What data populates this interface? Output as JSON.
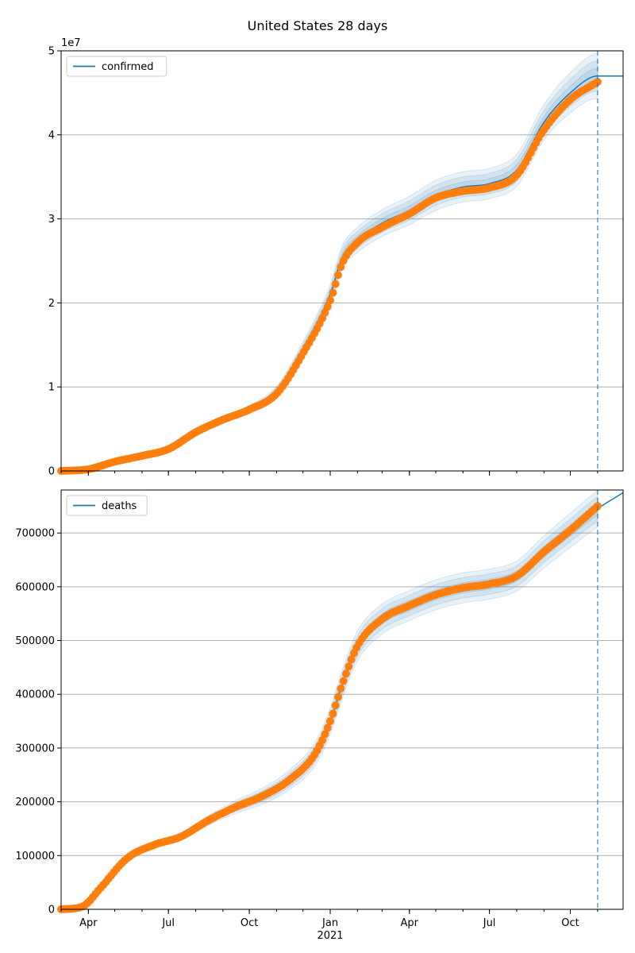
{
  "title": "United States 28 days",
  "chart_data": [
    {
      "type": "line",
      "panel": "top",
      "legend": [
        "confirmed"
      ],
      "legend_position": "upper left",
      "grid": "horizontal",
      "x_range": [
        "2020-03-01",
        "2021-11-30"
      ],
      "xtick_labels": [
        "Apr",
        "Jul",
        "Oct",
        "Jan",
        "Apr",
        "Jul",
        "Oct"
      ],
      "xtick_dates": [
        "2020-04-01",
        "2020-07-01",
        "2020-10-01",
        "2021-01-01",
        "2021-04-01",
        "2021-07-01",
        "2021-10-01"
      ],
      "year_label": "2021",
      "ylim": [
        0,
        50000000
      ],
      "yticks": [
        0,
        10000000,
        20000000,
        30000000,
        40000000,
        50000000
      ],
      "ytick_labels": [
        "0",
        "1",
        "2",
        "3",
        "4",
        "5"
      ],
      "y_offset_label": "1e7",
      "forecast_start": "2021-11-01",
      "series": [
        {
          "name": "confirmed",
          "role": "model",
          "color": "#1f77b4",
          "x": [
            "2020-03-01",
            "2020-04-01",
            "2020-05-01",
            "2020-06-01",
            "2020-07-01",
            "2020-08-01",
            "2020-09-01",
            "2020-10-01",
            "2020-11-01",
            "2020-12-01",
            "2021-01-01",
            "2021-01-15",
            "2021-02-01",
            "2021-03-01",
            "2021-04-01",
            "2021-05-01",
            "2021-06-01",
            "2021-07-01",
            "2021-08-01",
            "2021-09-01",
            "2021-10-01",
            "2021-11-01",
            "2021-12-01"
          ],
          "y": [
            0,
            200000,
            1150000,
            1800000,
            2700000,
            4700000,
            6200000,
            7400000,
            9500000,
            14500000,
            21000000,
            25500000,
            27500000,
            29500000,
            31000000,
            32800000,
            33800000,
            34200000,
            35800000,
            41500000,
            45000000,
            47000000,
            47000000
          ]
        },
        {
          "name": "observed",
          "role": "observed",
          "color": "#ff7f0e",
          "x": [
            "2020-03-01",
            "2020-04-01",
            "2020-05-01",
            "2020-06-01",
            "2020-07-01",
            "2020-08-01",
            "2020-09-01",
            "2020-10-01",
            "2020-11-01",
            "2020-12-01",
            "2021-01-01",
            "2021-01-15",
            "2021-02-01",
            "2021-03-01",
            "2021-04-01",
            "2021-05-01",
            "2021-06-01",
            "2021-07-01",
            "2021-08-01",
            "2021-09-01",
            "2021-10-01",
            "2021-11-01"
          ],
          "y": [
            0,
            200000,
            1100000,
            1800000,
            2600000,
            4600000,
            6100000,
            7300000,
            9200000,
            14000000,
            20300000,
            24800000,
            27200000,
            29000000,
            30600000,
            32500000,
            33300000,
            33700000,
            35200000,
            40600000,
            44200000,
            46300000
          ]
        }
      ],
      "bands": {
        "x": [
          "2020-09-01",
          "2020-10-01",
          "2020-11-01",
          "2020-12-01",
          "2021-01-01",
          "2021-01-15",
          "2021-02-01",
          "2021-03-01",
          "2021-04-01",
          "2021-05-01",
          "2021-06-01",
          "2021-07-01",
          "2021-08-01",
          "2021-09-01",
          "2021-10-01",
          "2021-11-01"
        ],
        "half_widths": [
          [
            300000,
            400000,
            600000,
            900000,
            1200000,
            1400000,
            1500000,
            1600000,
            1700000,
            1800000,
            1800000,
            1800000,
            1900000,
            2100000,
            2400000,
            2700000
          ],
          [
            200000,
            270000,
            400000,
            600000,
            800000,
            950000,
            1000000,
            1100000,
            1150000,
            1200000,
            1200000,
            1200000,
            1300000,
            1400000,
            1600000,
            1800000
          ],
          [
            100000,
            130000,
            200000,
            300000,
            400000,
            450000,
            500000,
            550000,
            570000,
            600000,
            600000,
            600000,
            650000,
            700000,
            800000,
            900000
          ]
        ]
      }
    },
    {
      "type": "line",
      "panel": "bottom",
      "legend": [
        "deaths"
      ],
      "legend_position": "upper left",
      "grid": "horizontal",
      "x_range": [
        "2020-03-01",
        "2021-11-30"
      ],
      "ylim": [
        0,
        780000
      ],
      "yticks": [
        0,
        100000,
        200000,
        300000,
        400000,
        500000,
        600000,
        700000
      ],
      "ytick_labels": [
        "0",
        "100000",
        "200000",
        "300000",
        "400000",
        "500000",
        "600000",
        "700000"
      ],
      "forecast_start": "2021-11-01",
      "series": [
        {
          "name": "deaths",
          "role": "model",
          "color": "#1f77b4",
          "x": [
            "2020-03-01",
            "2020-03-25",
            "2020-04-15",
            "2020-05-15",
            "2020-06-15",
            "2020-07-15",
            "2020-08-15",
            "2020-09-15",
            "2020-10-15",
            "2020-11-15",
            "2020-12-15",
            "2021-01-01",
            "2021-01-15",
            "2021-02-01",
            "2021-03-01",
            "2021-04-01",
            "2021-05-01",
            "2021-06-01",
            "2021-07-01",
            "2021-08-01",
            "2021-09-01",
            "2021-10-01",
            "2021-11-01",
            "2021-11-30"
          ],
          "y": [
            0,
            5000,
            40000,
            95000,
            120000,
            135000,
            165000,
            190000,
            210000,
            240000,
            290000,
            350000,
            420000,
            490000,
            540000,
            565000,
            585000,
            598000,
            605000,
            620000,
            665000,
            705000,
            745000,
            775000
          ]
        },
        {
          "name": "observed",
          "role": "observed",
          "color": "#ff7f0e",
          "x": [
            "2020-03-01",
            "2020-03-25",
            "2020-04-15",
            "2020-05-15",
            "2020-06-15",
            "2020-07-15",
            "2020-08-15",
            "2020-09-15",
            "2020-10-15",
            "2020-11-15",
            "2020-12-15",
            "2021-01-01",
            "2021-01-15",
            "2021-02-01",
            "2021-03-01",
            "2021-04-01",
            "2021-05-01",
            "2021-06-01",
            "2021-07-01",
            "2021-08-01",
            "2021-09-01",
            "2021-10-01",
            "2021-11-01"
          ],
          "y": [
            0,
            5000,
            40000,
            95000,
            120000,
            135000,
            165000,
            190000,
            210000,
            240000,
            290000,
            350000,
            420000,
            490000,
            540000,
            565000,
            585000,
            598000,
            605000,
            620000,
            665000,
            705000,
            750000
          ]
        }
      ],
      "bands": {
        "x": [
          "2020-07-15",
          "2020-08-15",
          "2020-09-15",
          "2020-10-15",
          "2020-11-15",
          "2020-12-15",
          "2021-01-01",
          "2021-01-15",
          "2021-02-01",
          "2021-03-01",
          "2021-04-01",
          "2021-05-01",
          "2021-06-01",
          "2021-07-01",
          "2021-08-01",
          "2021-09-01",
          "2021-10-01",
          "2021-11-01"
        ],
        "half_widths": [
          [
            6000,
            9000,
            12000,
            15000,
            18000,
            22000,
            25000,
            27000,
            28000,
            28000,
            28000,
            28000,
            28000,
            28000,
            28000,
            30000,
            32000,
            34000
          ],
          [
            4000,
            6000,
            8000,
            10000,
            12000,
            15000,
            17000,
            18000,
            19000,
            19000,
            19000,
            19000,
            19000,
            19000,
            19000,
            20000,
            21000,
            23000
          ],
          [
            2000,
            3000,
            4000,
            5000,
            6000,
            7500,
            8500,
            9000,
            9500,
            9500,
            9500,
            9500,
            9500,
            9500,
            9500,
            10000,
            10500,
            11500
          ]
        ]
      }
    }
  ]
}
